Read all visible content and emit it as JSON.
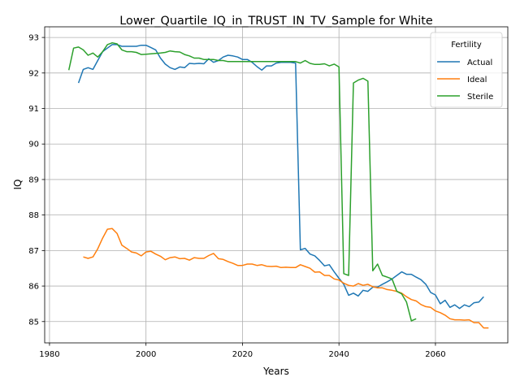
{
  "chart_data": {
    "type": "line",
    "title": "Lower_Quartile_IQ_in_TRUST_IN_TV_Sample for White",
    "xlabel": "Years",
    "ylabel": "IQ",
    "xlim": [
      1979,
      2075
    ],
    "ylim": [
      84.4,
      93.3
    ],
    "xticks": [
      1980,
      2000,
      2020,
      2040,
      2060
    ],
    "yticks": [
      85,
      86,
      87,
      88,
      89,
      90,
      91,
      92,
      93
    ],
    "grid": true,
    "legend": {
      "title": "Fertility",
      "position": "top-right"
    },
    "series": [
      {
        "name": "Actual",
        "color": "#1f77b4",
        "points": [
          [
            1986,
            91.72
          ],
          [
            1987,
            92.1
          ],
          [
            1988,
            92.15
          ],
          [
            1989,
            92.1
          ],
          [
            1990,
            92.35
          ],
          [
            1991,
            92.6
          ],
          [
            1992,
            92.7
          ],
          [
            1993,
            92.8
          ],
          [
            1994,
            92.8
          ],
          [
            1995,
            92.75
          ],
          [
            1996,
            92.75
          ],
          [
            1997,
            92.75
          ],
          [
            1998,
            92.75
          ],
          [
            1999,
            92.78
          ],
          [
            2000,
            92.78
          ],
          [
            2001,
            92.72
          ],
          [
            2002,
            92.65
          ],
          [
            2003,
            92.42
          ],
          [
            2004,
            92.25
          ],
          [
            2005,
            92.15
          ],
          [
            2006,
            92.1
          ],
          [
            2007,
            92.17
          ],
          [
            2008,
            92.15
          ],
          [
            2009,
            92.27
          ],
          [
            2010,
            92.26
          ],
          [
            2011,
            92.27
          ],
          [
            2012,
            92.26
          ],
          [
            2013,
            92.4
          ],
          [
            2014,
            92.3
          ],
          [
            2015,
            92.35
          ],
          [
            2016,
            92.45
          ],
          [
            2017,
            92.5
          ],
          [
            2018,
            92.48
          ],
          [
            2019,
            92.45
          ],
          [
            2020,
            92.38
          ],
          [
            2021,
            92.38
          ],
          [
            2022,
            92.3
          ],
          [
            2023,
            92.18
          ],
          [
            2024,
            92.08
          ],
          [
            2025,
            92.2
          ],
          [
            2026,
            92.2
          ],
          [
            2027,
            92.28
          ],
          [
            2028,
            92.3
          ],
          [
            2029,
            92.3
          ],
          [
            2030,
            92.3
          ],
          [
            2031,
            92.28
          ],
          [
            2032,
            87.02
          ],
          [
            2033,
            87.06
          ],
          [
            2034,
            86.9
          ],
          [
            2035,
            86.85
          ],
          [
            2036,
            86.72
          ],
          [
            2037,
            86.57
          ],
          [
            2038,
            86.6
          ],
          [
            2039,
            86.4
          ],
          [
            2040,
            86.22
          ],
          [
            2041,
            86.05
          ],
          [
            2042,
            85.74
          ],
          [
            2043,
            85.8
          ],
          [
            2044,
            85.72
          ],
          [
            2045,
            85.88
          ],
          [
            2046,
            85.85
          ],
          [
            2047,
            85.97
          ],
          [
            2048,
            85.97
          ],
          [
            2049,
            86.05
          ],
          [
            2050,
            86.12
          ],
          [
            2051,
            86.2
          ],
          [
            2052,
            86.3
          ],
          [
            2053,
            86.4
          ],
          [
            2054,
            86.33
          ],
          [
            2055,
            86.33
          ],
          [
            2056,
            86.25
          ],
          [
            2057,
            86.18
          ],
          [
            2058,
            86.05
          ],
          [
            2059,
            85.82
          ],
          [
            2060,
            85.75
          ],
          [
            2061,
            85.5
          ],
          [
            2062,
            85.6
          ],
          [
            2063,
            85.4
          ],
          [
            2064,
            85.47
          ],
          [
            2065,
            85.37
          ],
          [
            2066,
            85.47
          ],
          [
            2067,
            85.42
          ],
          [
            2068,
            85.53
          ],
          [
            2069,
            85.55
          ],
          [
            2070,
            85.7
          ]
        ]
      },
      {
        "name": "Ideal",
        "color": "#ff7f0e",
        "points": [
          [
            1987,
            86.82
          ],
          [
            1988,
            86.78
          ],
          [
            1989,
            86.82
          ],
          [
            1990,
            87.05
          ],
          [
            1991,
            87.35
          ],
          [
            1992,
            87.6
          ],
          [
            1993,
            87.62
          ],
          [
            1994,
            87.48
          ],
          [
            1995,
            87.15
          ],
          [
            1996,
            87.06
          ],
          [
            1997,
            86.96
          ],
          [
            1998,
            86.93
          ],
          [
            1999,
            86.85
          ],
          [
            2000,
            86.96
          ],
          [
            2001,
            86.98
          ],
          [
            2002,
            86.9
          ],
          [
            2003,
            86.84
          ],
          [
            2004,
            86.74
          ],
          [
            2005,
            86.8
          ],
          [
            2006,
            86.82
          ],
          [
            2007,
            86.77
          ],
          [
            2008,
            86.78
          ],
          [
            2009,
            86.73
          ],
          [
            2010,
            86.8
          ],
          [
            2011,
            86.78
          ],
          [
            2012,
            86.78
          ],
          [
            2013,
            86.86
          ],
          [
            2014,
            86.92
          ],
          [
            2015,
            86.77
          ],
          [
            2016,
            86.75
          ],
          [
            2017,
            86.69
          ],
          [
            2018,
            86.64
          ],
          [
            2019,
            86.58
          ],
          [
            2020,
            86.58
          ],
          [
            2021,
            86.62
          ],
          [
            2022,
            86.62
          ],
          [
            2023,
            86.58
          ],
          [
            2024,
            86.6
          ],
          [
            2025,
            86.56
          ],
          [
            2026,
            86.55
          ],
          [
            2027,
            86.56
          ],
          [
            2028,
            86.52
          ],
          [
            2029,
            86.53
          ],
          [
            2030,
            86.52
          ],
          [
            2031,
            86.52
          ],
          [
            2032,
            86.6
          ],
          [
            2033,
            86.55
          ],
          [
            2034,
            86.5
          ],
          [
            2035,
            86.39
          ],
          [
            2036,
            86.4
          ],
          [
            2037,
            86.3
          ],
          [
            2038,
            86.3
          ],
          [
            2039,
            86.2
          ],
          [
            2040,
            86.17
          ],
          [
            2041,
            86.08
          ],
          [
            2042,
            86.02
          ],
          [
            2043,
            86.0
          ],
          [
            2044,
            86.07
          ],
          [
            2045,
            86.02
          ],
          [
            2046,
            86.05
          ],
          [
            2047,
            85.98
          ],
          [
            2048,
            85.95
          ],
          [
            2049,
            85.95
          ],
          [
            2050,
            85.9
          ],
          [
            2051,
            85.88
          ],
          [
            2052,
            85.85
          ],
          [
            2053,
            85.8
          ],
          [
            2054,
            85.7
          ],
          [
            2055,
            85.62
          ],
          [
            2056,
            85.58
          ],
          [
            2057,
            85.48
          ],
          [
            2058,
            85.42
          ],
          [
            2059,
            85.4
          ],
          [
            2060,
            85.3
          ],
          [
            2061,
            85.25
          ],
          [
            2062,
            85.18
          ],
          [
            2063,
            85.08
          ],
          [
            2064,
            85.05
          ],
          [
            2065,
            85.05
          ],
          [
            2066,
            85.04
          ],
          [
            2067,
            85.05
          ],
          [
            2068,
            84.97
          ],
          [
            2069,
            84.97
          ],
          [
            2070,
            84.82
          ],
          [
            2071,
            84.82
          ]
        ]
      },
      {
        "name": "Sterile",
        "color": "#2ca02c",
        "points": [
          [
            1984,
            92.08
          ],
          [
            1985,
            92.7
          ],
          [
            1986,
            92.73
          ],
          [
            1987,
            92.65
          ],
          [
            1988,
            92.5
          ],
          [
            1989,
            92.56
          ],
          [
            1990,
            92.45
          ],
          [
            1991,
            92.6
          ],
          [
            1992,
            92.8
          ],
          [
            1993,
            92.85
          ],
          [
            1994,
            92.82
          ],
          [
            1995,
            92.65
          ],
          [
            1996,
            92.6
          ],
          [
            1997,
            92.6
          ],
          [
            1998,
            92.58
          ],
          [
            1999,
            92.52
          ],
          [
            2000,
            92.53
          ],
          [
            2001,
            92.54
          ],
          [
            2002,
            92.55
          ],
          [
            2003,
            92.56
          ],
          [
            2004,
            92.58
          ],
          [
            2005,
            92.62
          ],
          [
            2006,
            92.6
          ],
          [
            2007,
            92.59
          ],
          [
            2008,
            92.52
          ],
          [
            2009,
            92.48
          ],
          [
            2010,
            92.42
          ],
          [
            2011,
            92.42
          ],
          [
            2012,
            92.38
          ],
          [
            2013,
            92.38
          ],
          [
            2014,
            92.38
          ],
          [
            2015,
            92.35
          ],
          [
            2016,
            92.35
          ],
          [
            2017,
            92.32
          ],
          [
            2018,
            92.32
          ],
          [
            2019,
            92.32
          ],
          [
            2020,
            92.32
          ],
          [
            2021,
            92.32
          ],
          [
            2022,
            92.32
          ],
          [
            2023,
            92.32
          ],
          [
            2024,
            92.32
          ],
          [
            2025,
            92.32
          ],
          [
            2026,
            92.32
          ],
          [
            2027,
            92.32
          ],
          [
            2028,
            92.32
          ],
          [
            2029,
            92.32
          ],
          [
            2030,
            92.32
          ],
          [
            2031,
            92.32
          ],
          [
            2032,
            92.28
          ],
          [
            2033,
            92.35
          ],
          [
            2034,
            92.27
          ],
          [
            2035,
            92.24
          ],
          [
            2036,
            92.24
          ],
          [
            2037,
            92.26
          ],
          [
            2038,
            92.2
          ],
          [
            2039,
            92.25
          ],
          [
            2040,
            92.17
          ],
          [
            2041,
            86.35
          ],
          [
            2042,
            86.3
          ],
          [
            2043,
            91.72
          ],
          [
            2044,
            91.8
          ],
          [
            2045,
            91.85
          ],
          [
            2046,
            91.77
          ],
          [
            2047,
            86.43
          ],
          [
            2048,
            86.62
          ],
          [
            2049,
            86.3
          ],
          [
            2050,
            86.25
          ],
          [
            2051,
            86.2
          ],
          [
            2052,
            85.85
          ],
          [
            2053,
            85.78
          ],
          [
            2054,
            85.55
          ],
          [
            2055,
            85.02
          ],
          [
            2056,
            85.08
          ]
        ]
      }
    ]
  }
}
